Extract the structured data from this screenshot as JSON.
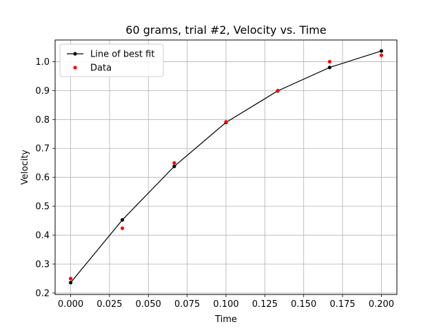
{
  "chart_data": {
    "type": "line",
    "title": "60 grams, trial #2, Velocity vs. Time",
    "xlabel": "Time",
    "ylabel": "Velocity",
    "xlim": [
      -0.01,
      0.21
    ],
    "ylim": [
      0.195,
      1.075
    ],
    "xticks": [
      0.0,
      0.025,
      0.05,
      0.075,
      0.1,
      0.125,
      0.15,
      0.175,
      0.2
    ],
    "xtick_labels": [
      "0.000",
      "0.025",
      "0.050",
      "0.075",
      "0.100",
      "0.125",
      "0.150",
      "0.175",
      "0.200"
    ],
    "yticks": [
      0.2,
      0.3,
      0.4,
      0.5,
      0.6,
      0.7,
      0.8,
      0.9,
      1.0
    ],
    "ytick_labels": [
      "0.2",
      "0.3",
      "0.4",
      "0.5",
      "0.6",
      "0.7",
      "0.8",
      "0.9",
      "1.0"
    ],
    "grid": true,
    "legend_position": "top-left",
    "series": [
      {
        "name": "Line of best fit",
        "style": "line-with-markers",
        "color": "#000000",
        "x": [
          0.0,
          0.0333,
          0.0667,
          0.1,
          0.1333,
          0.1667,
          0.2
        ],
        "y": [
          0.236,
          0.453,
          0.638,
          0.79,
          0.899,
          0.98,
          1.037
        ]
      },
      {
        "name": "Data",
        "style": "markers",
        "color": "#ff0000",
        "x": [
          0.0,
          0.0333,
          0.0667,
          0.1,
          0.1333,
          0.1667,
          0.2
        ],
        "y": [
          0.25,
          0.424,
          0.65,
          0.792,
          0.9,
          1.0,
          1.022
        ]
      }
    ]
  }
}
